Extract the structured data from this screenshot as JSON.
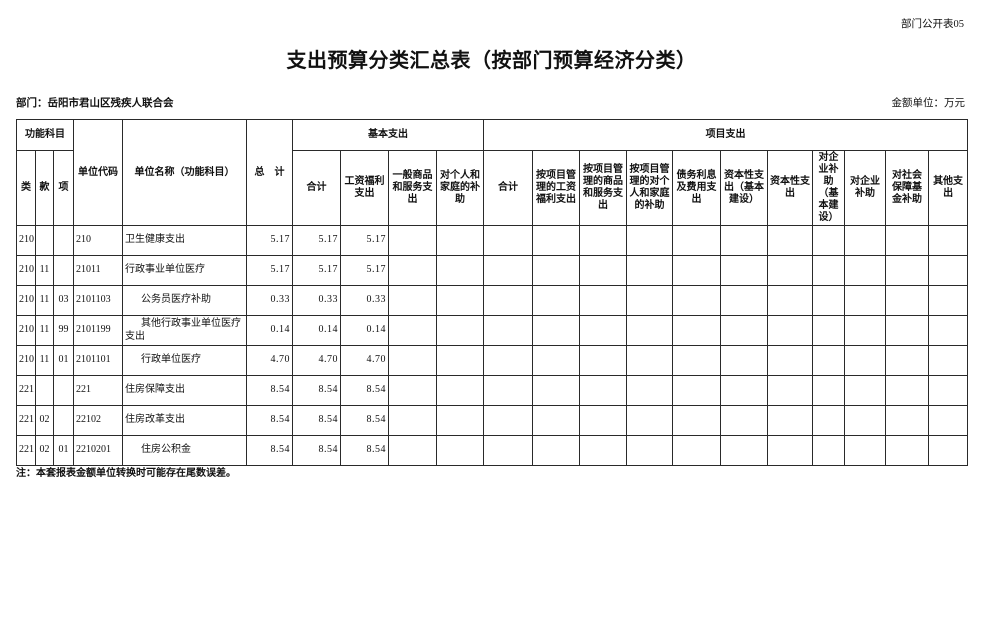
{
  "page": {
    "corner_label": "部门公开表05",
    "title": "支出预算分类汇总表（按部门预算经济分类）",
    "department_label": "部门：岳阳市君山区残疾人联合会",
    "unit_label": "金额单位：万元",
    "footnote": "注：本套报表金额单位转换时可能存在尾数误差。"
  },
  "table": {
    "header": {
      "func_group": "功能科目",
      "cls": "类",
      "kuan": "款",
      "xiang": "项",
      "unit_code": "单位代码",
      "unit_name": "单位名称（功能科目）",
      "grand_total": "总　计",
      "basic_group": "基本支出",
      "project_group": "项目支出",
      "basic_cols": [
        "合计",
        "工资福利支出",
        "一般商品和服务支出",
        "对个人和家庭的补助"
      ],
      "project_cols": [
        "合计",
        "按项目管理的工资福利支出",
        "按项目管理的商品和服务支出",
        "按项目管理的对个人和家庭的补助",
        "债务利息及费用支出",
        "资本性支出（基本建设）",
        "资本性支出",
        "对企业补助（基本建设）",
        "对企业补助",
        "对社会保障基金补助",
        "其他支出"
      ]
    },
    "rows": [
      {
        "sub": false,
        "cells": [
          "210",
          "",
          "",
          "210",
          "卫生健康支出",
          "5.17",
          "5.17",
          "5.17",
          "",
          "",
          "",
          "",
          "",
          "",
          "",
          "",
          "",
          "",
          "",
          "",
          ""
        ]
      },
      {
        "sub": false,
        "cells": [
          "210",
          "11",
          "",
          "21011",
          "行政事业单位医疗",
          "5.17",
          "5.17",
          "5.17",
          "",
          "",
          "",
          "",
          "",
          "",
          "",
          "",
          "",
          "",
          "",
          "",
          ""
        ]
      },
      {
        "sub": true,
        "cells": [
          "210",
          "11",
          "03",
          "2101103",
          "公务员医疗补助",
          "0.33",
          "0.33",
          "0.33",
          "",
          "",
          "",
          "",
          "",
          "",
          "",
          "",
          "",
          "",
          "",
          "",
          ""
        ]
      },
      {
        "sub": true,
        "cells": [
          "210",
          "11",
          "99",
          "2101199",
          "其他行政事业单位医疗支出",
          "0.14",
          "0.14",
          "0.14",
          "",
          "",
          "",
          "",
          "",
          "",
          "",
          "",
          "",
          "",
          "",
          "",
          ""
        ]
      },
      {
        "sub": true,
        "cells": [
          "210",
          "11",
          "01",
          "2101101",
          "行政单位医疗",
          "4.70",
          "4.70",
          "4.70",
          "",
          "",
          "",
          "",
          "",
          "",
          "",
          "",
          "",
          "",
          "",
          "",
          ""
        ]
      },
      {
        "sub": false,
        "cells": [
          "221",
          "",
          "",
          "221",
          "住房保障支出",
          "8.54",
          "8.54",
          "8.54",
          "",
          "",
          "",
          "",
          "",
          "",
          "",
          "",
          "",
          "",
          "",
          "",
          ""
        ]
      },
      {
        "sub": false,
        "cells": [
          "221",
          "02",
          "",
          "22102",
          "住房改革支出",
          "8.54",
          "8.54",
          "8.54",
          "",
          "",
          "",
          "",
          "",
          "",
          "",
          "",
          "",
          "",
          "",
          "",
          ""
        ]
      },
      {
        "sub": true,
        "cells": [
          "221",
          "02",
          "01",
          "2210201",
          "住房公积金",
          "8.54",
          "8.54",
          "8.54",
          "",
          "",
          "",
          "",
          "",
          "",
          "",
          "",
          "",
          "",
          "",
          "",
          ""
        ]
      }
    ]
  }
}
